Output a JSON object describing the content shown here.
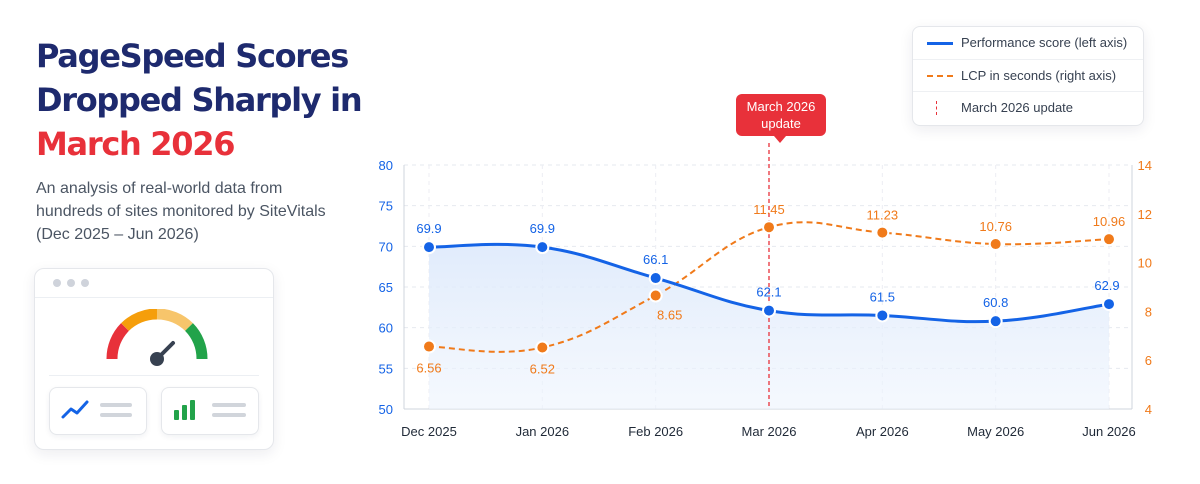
{
  "headline": {
    "line1": "PageSpeed Scores",
    "line2": "Dropped Sharply in",
    "line3": "March 2026",
    "subtitle": "An analysis of real-world data from hundreds of sites monitored by SiteVitals (Dec 2025 – Jun 2026)"
  },
  "illustration": {
    "icons": [
      "gauge-icon",
      "trend-line-icon",
      "bar-chart-icon"
    ]
  },
  "legend": {
    "perf": "Performance score (left axis)",
    "lcp": "LCP in seconds (right axis)",
    "update": "March 2026 update"
  },
  "annotation": {
    "label": "March 2026 update",
    "category": "Mar 2026"
  },
  "colors": {
    "perf": "#1463e6",
    "lcp": "#f07a1a",
    "accent": "#e8313a",
    "title": "#1e2a6e"
  },
  "chart_data": {
    "type": "line",
    "categories": [
      "Dec 2025",
      "Jan 2026",
      "Feb 2026",
      "Mar 2026",
      "Apr 2026",
      "May 2026",
      "Jun 2026"
    ],
    "series": [
      {
        "name": "Performance score (left axis)",
        "axis": "left",
        "values": [
          69.9,
          69.9,
          66.1,
          62.1,
          61.5,
          60.8,
          62.9
        ]
      },
      {
        "name": "LCP in seconds (right axis)",
        "axis": "right",
        "values": [
          6.56,
          6.52,
          8.65,
          11.45,
          11.23,
          10.76,
          10.96
        ]
      }
    ],
    "y_left": {
      "range": [
        50,
        80
      ],
      "ticks": [
        50,
        55,
        60,
        65,
        70,
        75,
        80
      ]
    },
    "y_right": {
      "range": [
        4,
        14
      ],
      "ticks": [
        4,
        6,
        8,
        10,
        12,
        14
      ]
    },
    "grid": true,
    "legend_position": "top-right"
  }
}
